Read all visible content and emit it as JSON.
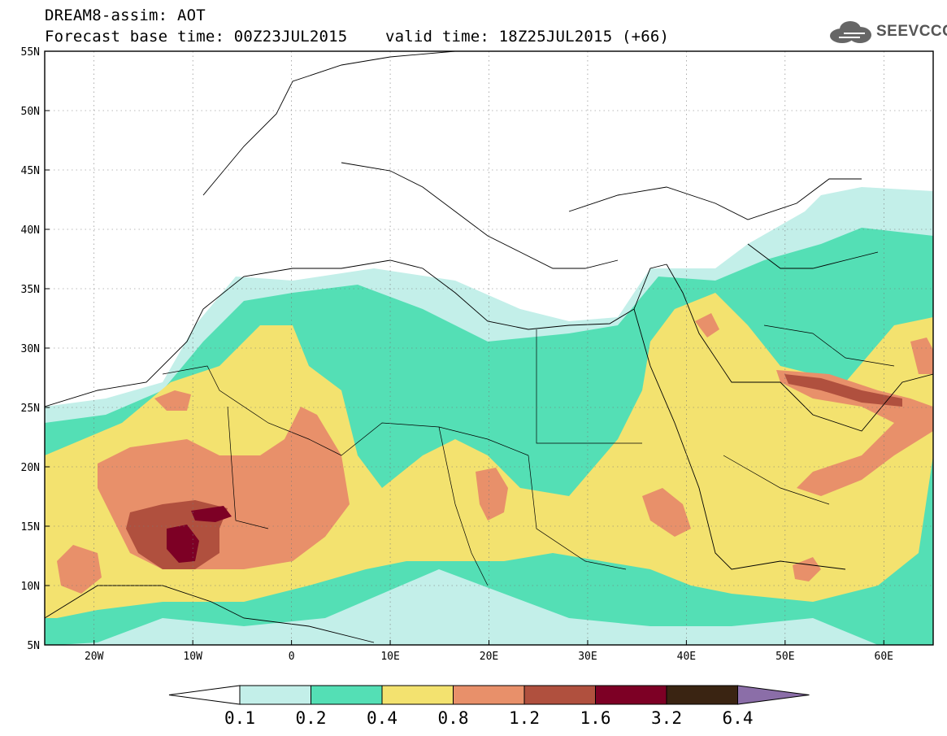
{
  "header": {
    "title_line1": "DREAM8-assim: AOT",
    "title_line2": "Forecast base time: 00Z23JUL2015    valid time: 18Z25JUL2015 (+66)"
  },
  "logo": {
    "text": "SEEVCCC",
    "icon": "cloud-icon"
  },
  "map": {
    "lat_labels": [
      "55N",
      "50N",
      "45N",
      "40N",
      "35N",
      "30N",
      "25N",
      "20N",
      "15N",
      "10N",
      "5N"
    ],
    "lon_labels": [
      "20W",
      "10W",
      "0",
      "10E",
      "20E",
      "30E",
      "40E",
      "50E",
      "60E"
    ],
    "lon_range": [
      -25,
      65
    ],
    "lat_range": [
      5,
      55
    ]
  },
  "colorbar": {
    "levels": [
      "0.1",
      "0.2",
      "0.4",
      "0.8",
      "1.2",
      "1.6",
      "3.2",
      "6.4"
    ],
    "colors": {
      "under": "#ffffff",
      "c1": "#c3efe9",
      "c2": "#54dfb5",
      "c3": "#f3e26f",
      "c4": "#e8906a",
      "c5": "#b0503e",
      "c6": "#7d0025",
      "c7": "#3a2412",
      "over": "#8b6ea8"
    }
  }
}
